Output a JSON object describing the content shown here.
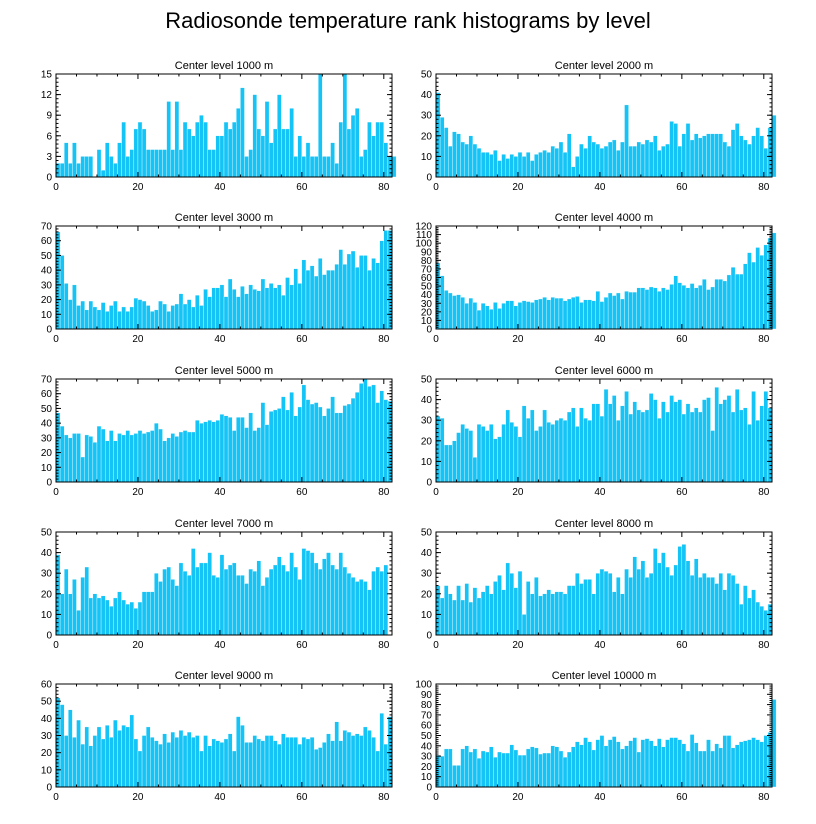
{
  "title": "Radiosonde temperature rank histograms by level",
  "colors": {
    "bar": "#14c4f6",
    "axis": "#000000",
    "background": "#ffffff"
  },
  "chart_data": [
    {
      "type": "bar",
      "title": "Center level 1000 m",
      "x_start": 0,
      "ylim": [
        0,
        15
      ],
      "xticks": [
        0,
        20,
        40,
        60,
        80
      ],
      "yticks": [
        0,
        3,
        6,
        9,
        12,
        15
      ],
      "values": [
        2,
        2,
        5,
        2,
        5,
        2,
        3,
        3,
        3,
        0,
        4,
        1,
        5,
        3,
        2,
        5,
        8,
        3,
        4,
        7,
        8,
        7,
        4,
        4,
        4,
        4,
        4,
        11,
        4,
        11,
        4,
        8,
        7,
        6,
        8,
        9,
        8,
        4,
        4,
        6,
        6,
        8,
        7,
        8,
        10,
        13,
        3,
        4,
        12,
        7,
        6,
        11,
        5,
        7,
        12,
        7,
        7,
        10,
        3,
        6,
        3,
        5,
        3,
        3,
        15,
        3,
        3,
        5,
        2,
        8,
        15,
        7,
        9,
        10,
        3,
        4,
        8,
        6,
        8,
        8,
        5,
        3,
        3
      ]
    },
    {
      "type": "bar",
      "title": "Center level 2000 m",
      "x_start": 0,
      "ylim": [
        0,
        50
      ],
      "xticks": [
        0,
        20,
        40,
        60,
        80
      ],
      "yticks": [
        0,
        10,
        20,
        30,
        40,
        50
      ],
      "values": [
        41,
        29,
        24,
        15,
        22,
        21,
        17,
        16,
        20,
        16,
        14,
        12,
        12,
        11,
        13,
        8,
        11,
        9,
        11,
        10,
        12,
        10,
        12,
        8,
        11,
        12,
        13,
        12,
        15,
        14,
        17,
        12,
        21,
        5,
        10,
        16,
        14,
        20,
        17,
        16,
        14,
        15,
        17,
        18,
        13,
        17,
        35,
        15,
        15,
        17,
        16,
        18,
        17,
        20,
        13,
        15,
        16,
        27,
        26,
        15,
        21,
        26,
        18,
        21,
        19,
        20,
        21,
        21,
        21,
        21,
        17,
        15,
        23,
        26,
        20,
        18,
        16,
        20,
        24,
        20,
        14,
        24,
        30
      ]
    },
    {
      "type": "bar",
      "title": "Center level 3000 m",
      "x_start": 0,
      "ylim": [
        0,
        70
      ],
      "xticks": [
        0,
        20,
        40,
        60,
        80
      ],
      "yticks": [
        0,
        10,
        20,
        30,
        40,
        50,
        60,
        70
      ],
      "values": [
        66,
        50,
        31,
        20,
        30,
        16,
        19,
        13,
        19,
        15,
        13,
        18,
        12,
        16,
        19,
        12,
        15,
        12,
        15,
        21,
        20,
        19,
        16,
        12,
        13,
        19,
        17,
        12,
        16,
        17,
        24,
        17,
        20,
        15,
        23,
        16,
        27,
        22,
        28,
        28,
        30,
        22,
        34,
        27,
        22,
        29,
        24,
        30,
        27,
        26,
        34,
        28,
        31,
        28,
        30,
        23,
        35,
        30,
        41,
        31,
        47,
        40,
        43,
        36,
        48,
        37,
        40,
        40,
        44,
        54,
        44,
        51,
        53,
        42,
        50,
        50,
        40,
        48,
        45,
        60,
        67,
        67
      ]
    },
    {
      "type": "bar",
      "title": "Center level 4000 m",
      "x_start": 0,
      "ylim": [
        0,
        120
      ],
      "xticks": [
        0,
        20,
        40,
        60,
        80
      ],
      "yticks": [
        0,
        10,
        20,
        30,
        40,
        50,
        60,
        70,
        80,
        90,
        100,
        110,
        120
      ],
      "values": [
        77,
        62,
        45,
        42,
        39,
        40,
        37,
        30,
        36,
        31,
        22,
        30,
        27,
        23,
        31,
        24,
        30,
        33,
        33,
        27,
        31,
        33,
        32,
        31,
        34,
        35,
        37,
        34,
        37,
        36,
        36,
        33,
        35,
        37,
        38,
        31,
        34,
        34,
        33,
        44,
        32,
        37,
        42,
        39,
        42,
        35,
        44,
        43,
        43,
        48,
        48,
        46,
        49,
        48,
        44,
        48,
        46,
        52,
        62,
        54,
        51,
        48,
        53,
        48,
        51,
        58,
        46,
        49,
        58,
        58,
        56,
        63,
        72,
        64,
        64,
        76,
        89,
        78,
        95,
        86,
        98,
        106,
        112
      ]
    },
    {
      "type": "bar",
      "title": "Center level 5000 m",
      "x_start": 0,
      "ylim": [
        0,
        70
      ],
      "xticks": [
        0,
        20,
        40,
        60,
        80
      ],
      "yticks": [
        0,
        10,
        20,
        30,
        40,
        50,
        60,
        70
      ],
      "values": [
        47,
        38,
        32,
        30,
        33,
        33,
        17,
        32,
        31,
        27,
        38,
        36,
        28,
        35,
        28,
        33,
        32,
        35,
        32,
        33,
        35,
        33,
        34,
        35,
        40,
        36,
        28,
        30,
        33,
        31,
        34,
        35,
        34,
        34,
        42,
        40,
        41,
        42,
        41,
        42,
        46,
        45,
        44,
        35,
        44,
        44,
        37,
        47,
        35,
        37,
        54,
        39,
        48,
        49,
        50,
        58,
        49,
        61,
        45,
        51,
        66,
        56,
        53,
        54,
        51,
        45,
        50,
        58,
        47,
        47,
        52,
        53,
        57,
        61,
        67,
        70,
        65,
        66,
        54,
        62,
        56,
        55
      ]
    },
    {
      "type": "bar",
      "title": "Center level 6000 m",
      "x_start": 0,
      "ylim": [
        0,
        50
      ],
      "xticks": [
        0,
        20,
        40,
        60,
        80
      ],
      "yticks": [
        0,
        10,
        20,
        30,
        40,
        50
      ],
      "values": [
        32,
        31,
        18,
        18,
        20,
        24,
        28,
        26,
        25,
        12,
        28,
        27,
        25,
        28,
        21,
        22,
        28,
        35,
        29,
        27,
        22,
        37,
        31,
        35,
        25,
        27,
        35,
        29,
        28,
        30,
        31,
        30,
        34,
        36,
        27,
        36,
        31,
        30,
        38,
        38,
        32,
        45,
        38,
        42,
        30,
        37,
        44,
        33,
        39,
        35,
        34,
        35,
        43,
        40,
        31,
        39,
        34,
        42,
        39,
        40,
        33,
        38,
        34,
        36,
        34,
        40,
        41,
        25,
        46,
        38,
        40,
        42,
        34,
        45,
        35,
        36,
        28,
        44,
        30,
        37,
        44,
        36
      ]
    },
    {
      "type": "bar",
      "title": "Center level 7000 m",
      "x_start": 0,
      "ylim": [
        0,
        50
      ],
      "xticks": [
        0,
        20,
        40,
        60,
        80
      ],
      "yticks": [
        0,
        10,
        20,
        30,
        40,
        50
      ],
      "values": [
        39,
        20,
        32,
        20,
        27,
        12,
        28,
        33,
        18,
        20,
        18,
        19,
        17,
        14,
        18,
        21,
        17,
        15,
        16,
        13,
        16,
        21,
        21,
        21,
        30,
        26,
        32,
        33,
        27,
        24,
        35,
        31,
        29,
        42,
        33,
        35,
        35,
        40,
        29,
        28,
        39,
        32,
        34,
        35,
        29,
        29,
        25,
        32,
        31,
        36,
        24,
        28,
        32,
        34,
        38,
        34,
        31,
        40,
        33,
        27,
        42,
        41,
        40,
        35,
        32,
        37,
        40,
        34,
        32,
        40,
        33,
        30,
        28,
        26,
        27,
        26,
        22,
        31,
        33,
        31,
        34
      ]
    },
    {
      "type": "bar",
      "title": "Center level 8000 m",
      "x_start": 0,
      "ylim": [
        0,
        50
      ],
      "xticks": [
        0,
        20,
        40,
        60,
        80
      ],
      "yticks": [
        0,
        10,
        20,
        30,
        40,
        50
      ],
      "values": [
        24,
        18,
        24,
        20,
        17,
        24,
        17,
        25,
        16,
        23,
        18,
        21,
        24,
        20,
        26,
        29,
        22,
        35,
        30,
        23,
        31,
        10,
        26,
        20,
        28,
        19,
        20,
        22,
        20,
        21,
        21,
        20,
        24,
        24,
        30,
        25,
        27,
        27,
        20,
        30,
        32,
        31,
        30,
        21,
        28,
        20,
        32,
        28,
        38,
        32,
        36,
        28,
        30,
        42,
        35,
        40,
        33,
        29,
        34,
        43,
        44,
        36,
        29,
        37,
        28,
        30,
        28,
        28,
        25,
        30,
        22,
        30,
        29,
        25,
        15,
        24,
        18,
        22,
        16,
        14,
        12,
        15
      ]
    },
    {
      "type": "bar",
      "title": "Center level 9000 m",
      "x_start": 0,
      "ylim": [
        0,
        60
      ],
      "xticks": [
        0,
        20,
        40,
        60,
        80
      ],
      "yticks": [
        0,
        10,
        20,
        30,
        40,
        50,
        60
      ],
      "values": [
        52,
        48,
        30,
        45,
        29,
        39,
        25,
        35,
        24,
        30,
        35,
        28,
        36,
        29,
        39,
        33,
        36,
        35,
        42,
        28,
        21,
        30,
        35,
        29,
        27,
        25,
        31,
        26,
        32,
        29,
        33,
        30,
        32,
        29,
        30,
        21,
        30,
        24,
        28,
        27,
        26,
        28,
        31,
        21,
        41,
        36,
        26,
        26,
        30,
        28,
        27,
        30,
        30,
        27,
        25,
        31,
        29,
        29,
        29,
        25,
        29,
        28,
        29,
        22,
        23,
        26,
        31,
        27,
        38,
        27,
        33,
        32,
        30,
        31,
        30,
        35,
        33,
        29,
        21,
        43,
        25,
        41
      ]
    },
    {
      "type": "bar",
      "title": "Center level 10000 m",
      "x_start": 0,
      "ylim": [
        0,
        100
      ],
      "xticks": [
        0,
        20,
        40,
        60,
        80
      ],
      "yticks": [
        0,
        10,
        20,
        30,
        40,
        50,
        60,
        70,
        80,
        90,
        100
      ],
      "values": [
        31,
        30,
        37,
        37,
        21,
        21,
        37,
        40,
        34,
        37,
        28,
        35,
        34,
        39,
        29,
        34,
        33,
        33,
        41,
        36,
        31,
        31,
        37,
        39,
        38,
        32,
        33,
        33,
        40,
        39,
        35,
        29,
        34,
        39,
        44,
        41,
        48,
        44,
        36,
        46,
        50,
        40,
        46,
        49,
        44,
        37,
        40,
        45,
        48,
        34,
        46,
        47,
        45,
        40,
        47,
        39,
        46,
        48,
        48,
        46,
        42,
        35,
        51,
        43,
        35,
        35,
        46,
        35,
        42,
        38,
        50,
        50,
        38,
        41,
        44,
        45,
        46,
        48,
        46,
        44,
        50,
        53,
        85
      ]
    }
  ]
}
